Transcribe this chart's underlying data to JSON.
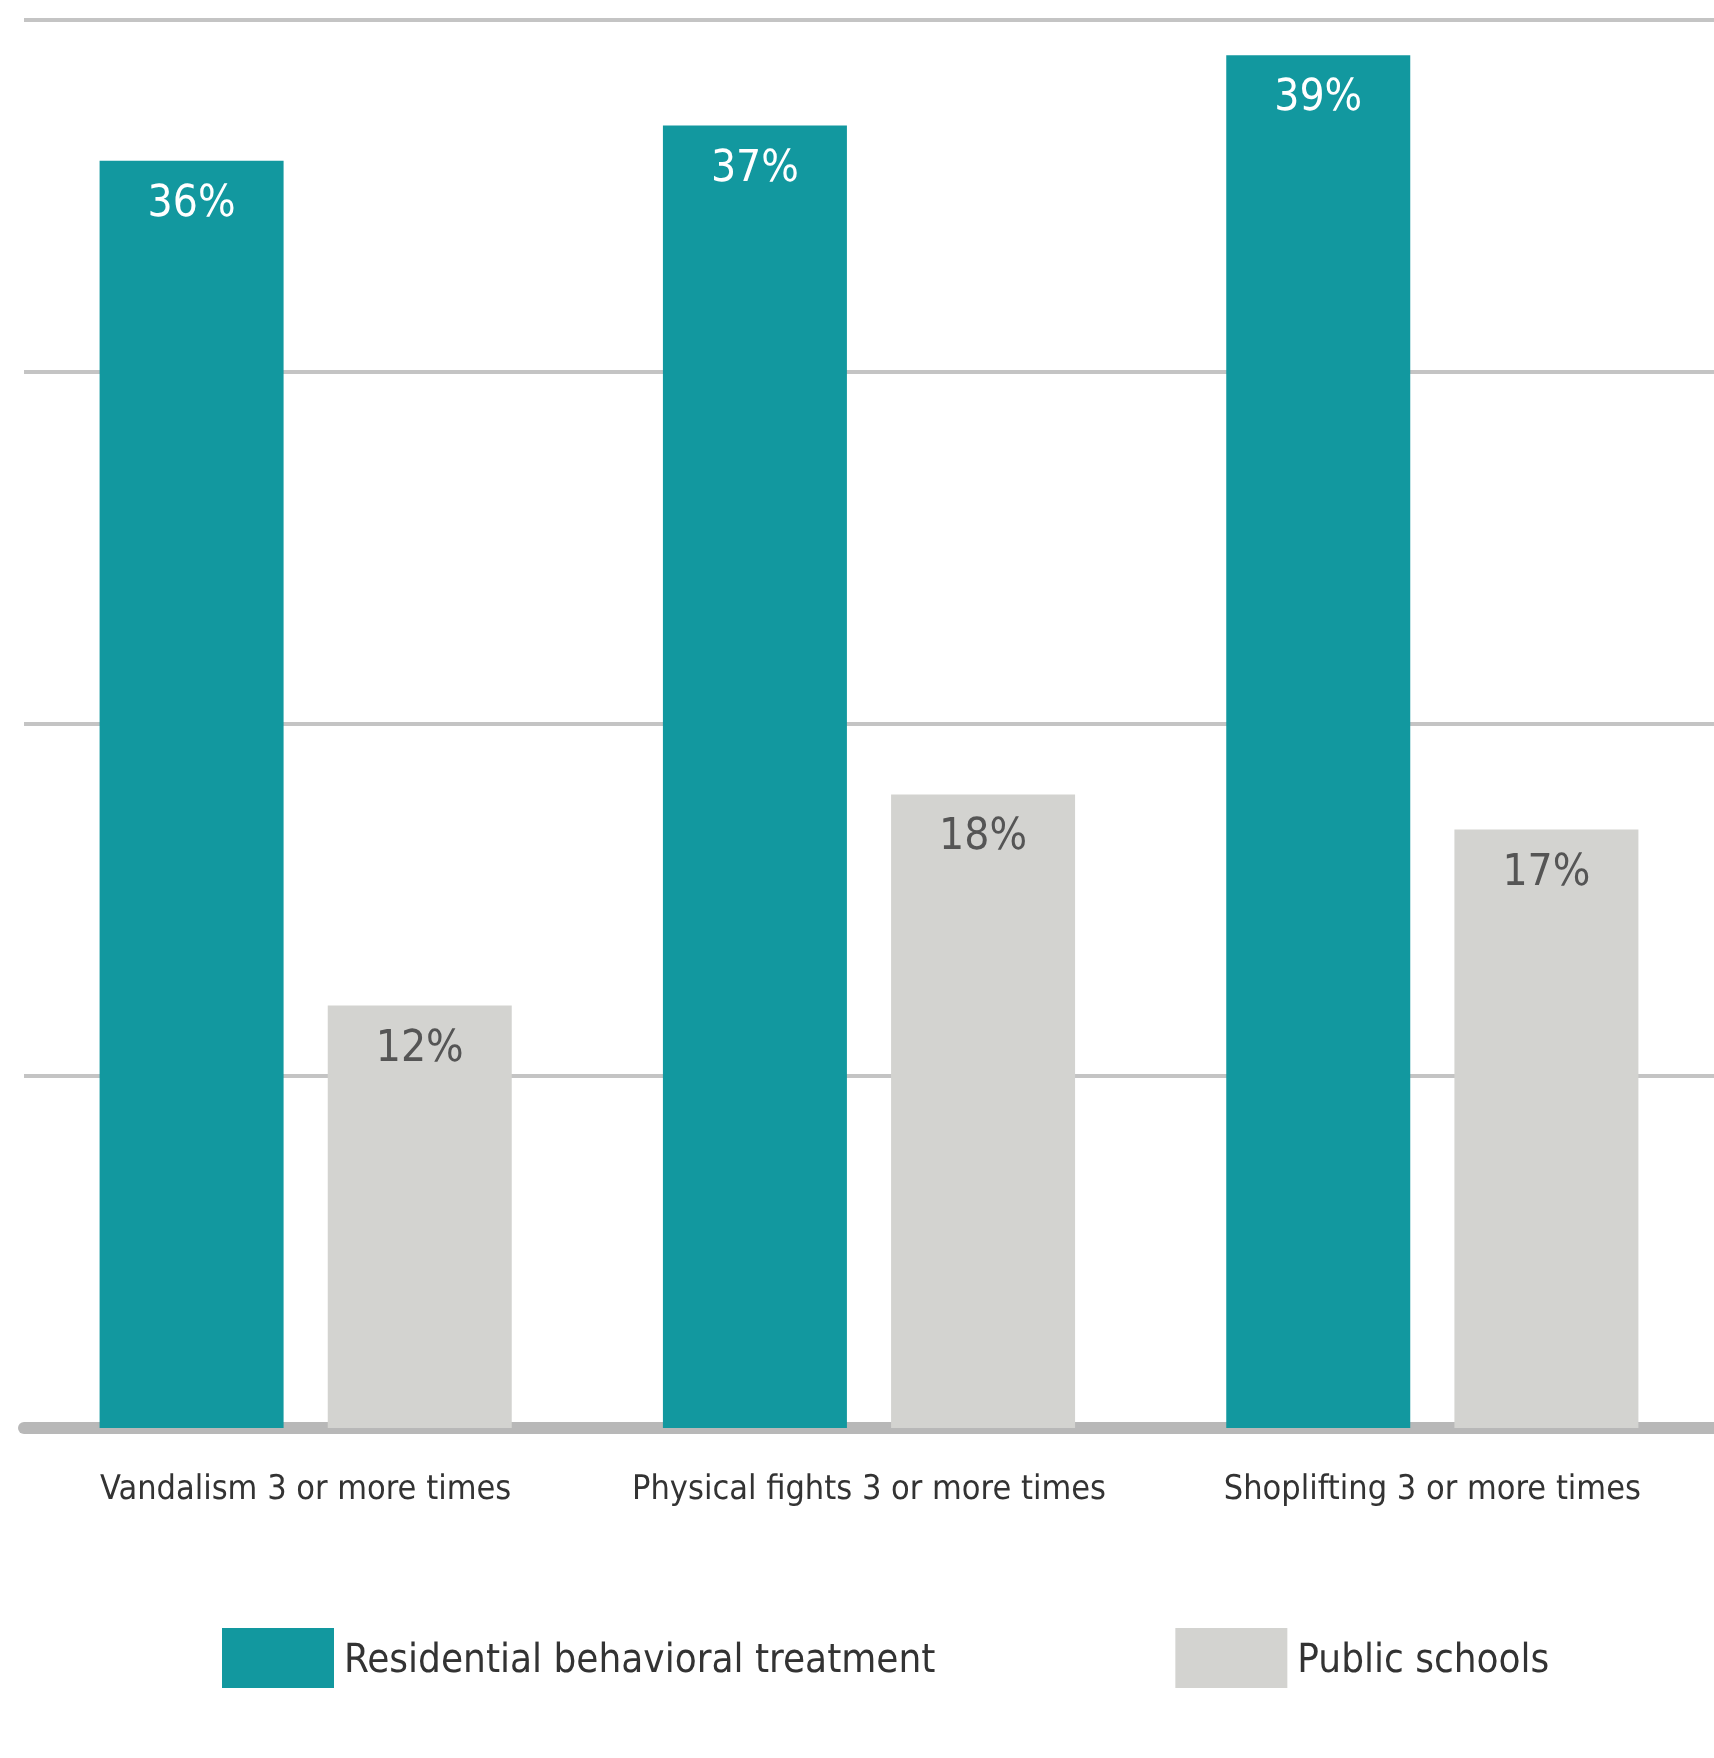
{
  "chart_data": {
    "type": "bar",
    "categories": [
      "Vandalism 3 or more times",
      "Physical fights 3 or more times",
      "Shoplifting 3 or more times"
    ],
    "series": [
      {
        "name": "Residential behavioral treatment",
        "color": "#12989f",
        "values": [
          36,
          37,
          39
        ],
        "value_labels": [
          "36%",
          "37%",
          "39%"
        ]
      },
      {
        "name": "Public schools",
        "color": "#d3d3d0",
        "values": [
          12,
          18,
          17
        ],
        "value_labels": [
          "12%",
          "18%",
          "17%"
        ]
      }
    ],
    "tick_labels": "x",
    "grid": "y",
    "legend": "bottom"
  }
}
